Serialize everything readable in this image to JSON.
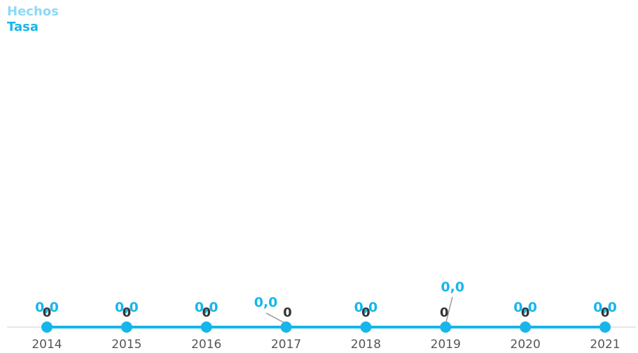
{
  "legend": {
    "items": [
      {
        "label": "Hechos",
        "color": "#8fd9f5"
      },
      {
        "label": "Tasa",
        "color": "#17b6ea"
      }
    ]
  },
  "colors": {
    "tasa": "#17b6ea",
    "hechos_label": "#333333",
    "axis": "#cccccc",
    "leader": "#999999",
    "tick_label": "#555555"
  },
  "chart_data": {
    "type": "line",
    "categories": [
      "2014",
      "2015",
      "2016",
      "2017",
      "2018",
      "2019",
      "2020",
      "2021"
    ],
    "series": [
      {
        "name": "Hechos",
        "values": [
          0,
          0,
          0,
          0,
          0,
          0,
          0,
          0
        ],
        "labels": [
          "0",
          "0",
          "0",
          "0",
          "0",
          "0",
          "0",
          "0"
        ]
      },
      {
        "name": "Tasa",
        "values": [
          0,
          0,
          0,
          0,
          0,
          0,
          0,
          0
        ],
        "labels": [
          "0,0",
          "0,0",
          "0,0",
          "0,0",
          "0,0",
          "0,0",
          "0,0",
          "0,0"
        ]
      }
    ],
    "grid": false,
    "legend": "top-left"
  }
}
